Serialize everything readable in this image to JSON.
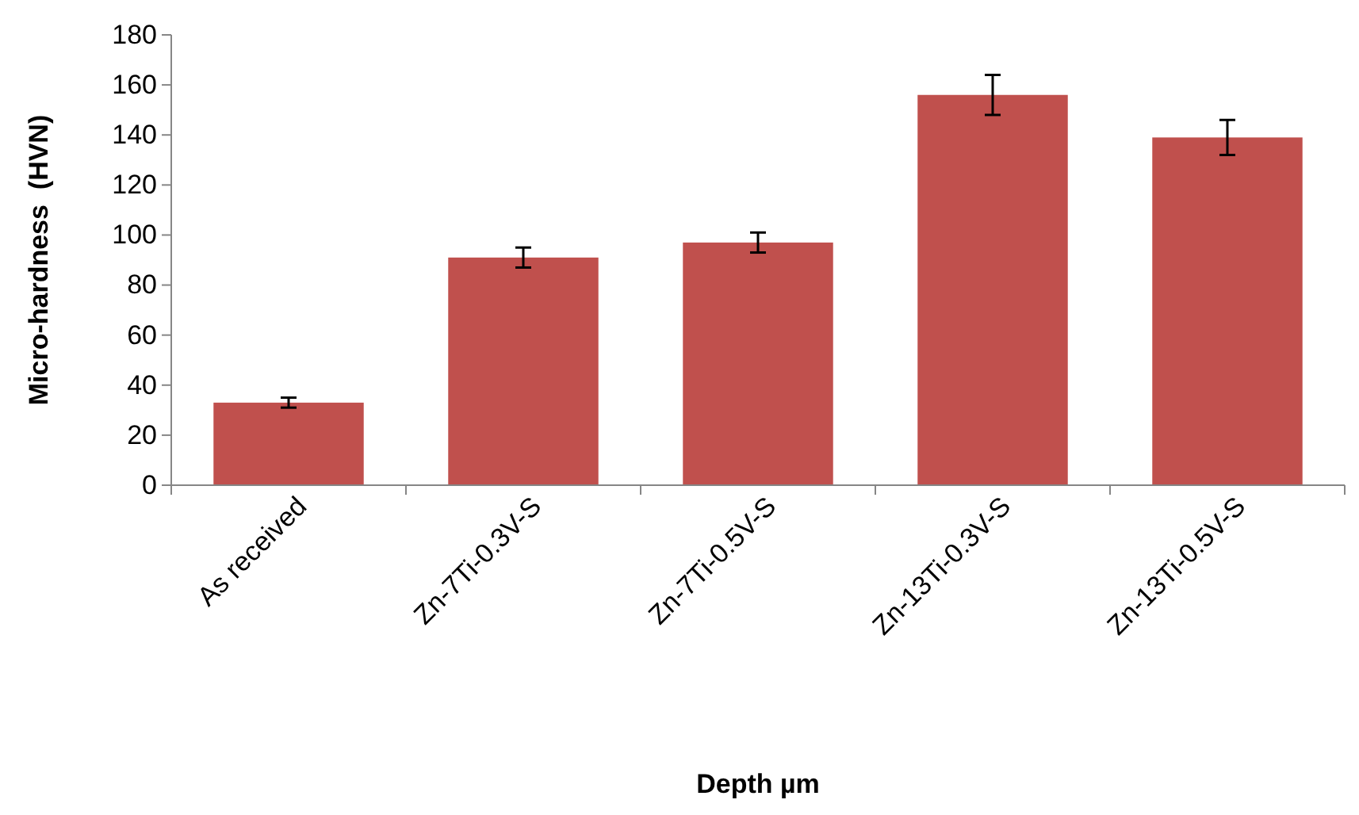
{
  "chart_data": {
    "type": "bar",
    "xlabel": "Depth µm",
    "ylabel": "Micro-hardness  (HVN)",
    "categories": [
      "As received",
      "Zn-7Ti-0.3V-S",
      "Zn-7Ti-0.5V-S",
      "Zn-13Ti-0.3V-S",
      "Zn-13Ti-0.5V-S"
    ],
    "values": [
      33,
      91,
      97,
      156,
      139
    ],
    "errors": [
      2,
      4,
      4,
      8,
      7
    ],
    "color": "#c0504d",
    "ylim": [
      0,
      180
    ],
    "yticks": [
      0,
      20,
      40,
      60,
      80,
      100,
      120,
      140,
      160,
      180
    ],
    "grid": false
  }
}
